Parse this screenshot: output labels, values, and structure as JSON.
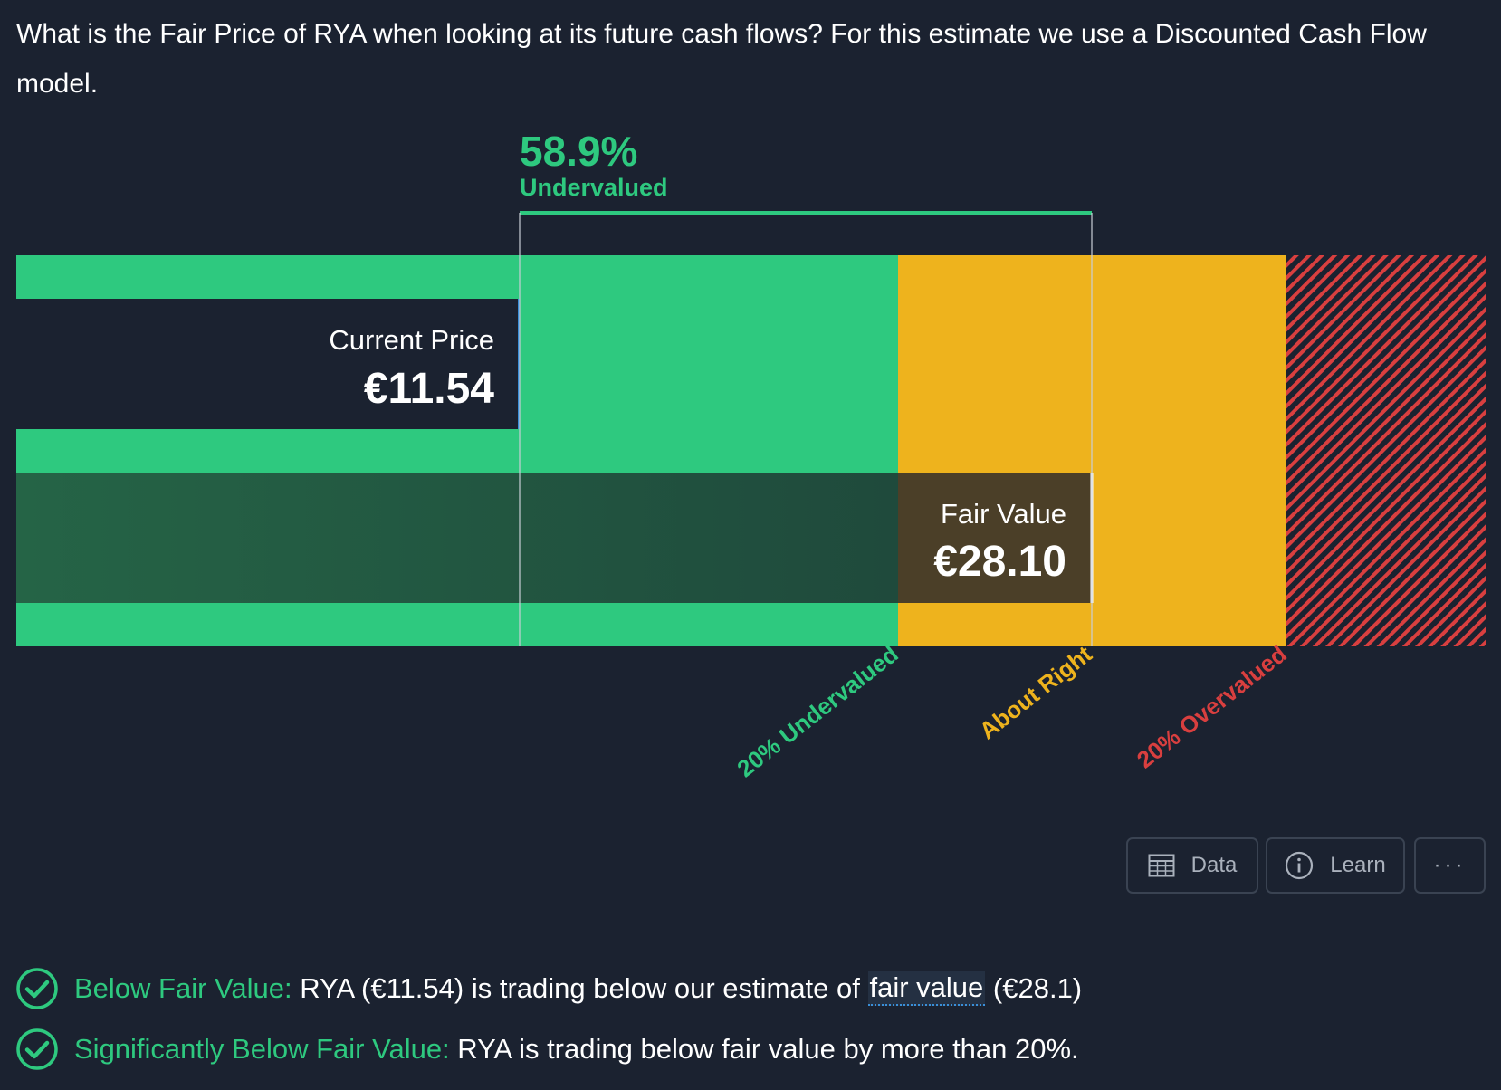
{
  "intro_text": "What is the Fair Price of RYA when looking at its future cash flows? For this estimate we use a Discounted Cash Flow model.",
  "chart": {
    "current_price_label": "Current Price",
    "current_price_value": "€11.54",
    "fair_value_label": "Fair Value",
    "fair_value_value": "€28.10",
    "discount_percent": "58.9%",
    "discount_label": "Undervalued",
    "current_price": 11.54,
    "fair_value": 28.1,
    "zone_labels": {
      "undervalued": "20% Undervalued",
      "about_right": "About Right",
      "overvalued": "20% Overvalued"
    },
    "colors": {
      "background": "#1b2230",
      "undervalued_zone": "#2ec97f",
      "about_right_zone": "#eeb31d",
      "overvalued_zone": "#d93f3f",
      "fair_value_bar": "#22573f",
      "fair_value_box": "#4b3f28"
    }
  },
  "actions": {
    "data_label": "Data",
    "learn_label": "Learn",
    "more_label": "···",
    "data_icon": "table-icon",
    "learn_icon": "info-icon"
  },
  "checks": [
    {
      "icon": "check-circle-icon",
      "title": "Below Fair Value:",
      "text_before": " RYA (€11.54) is trading below our estimate of ",
      "link_text": "fair value",
      "text_after": " (€28.1)"
    },
    {
      "icon": "check-circle-icon",
      "title": "Significantly Below Fair Value:",
      "text": " RYA is trading below fair value by more than 20%."
    }
  ]
}
